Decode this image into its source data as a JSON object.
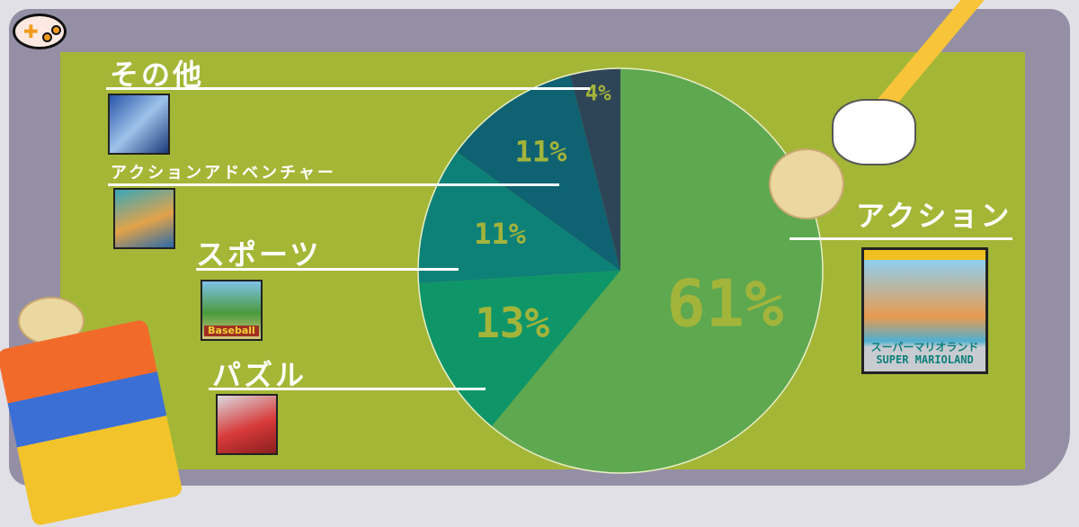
{
  "chart_data": {
    "type": "pie",
    "title": "",
    "slices": [
      {
        "label": "アクション",
        "value": 61,
        "value_label": "61%",
        "color": "#5ea84f"
      },
      {
        "label": "パズル",
        "value": 13,
        "value_label": "13%",
        "color": "#0f9668"
      },
      {
        "label": "スポーツ",
        "value": 11,
        "value_label": "11%",
        "color": "#0d8177"
      },
      {
        "label": "アクションアドベンチャー",
        "value": 11,
        "value_label": "11%",
        "color": "#0e6272"
      },
      {
        "label": "その他",
        "value": 4,
        "value_label": "4%",
        "color": "#2e4457"
      }
    ],
    "start": "top",
    "direction": "clockwise"
  },
  "covers": {
    "action": "スーパーマリオランド SUPER MARIOLAND",
    "sports": "Baseball"
  },
  "colors": {
    "background": "#a4b636",
    "frame": "#948fa5",
    "label": "#ffffff",
    "percent": "#a3b43b"
  }
}
